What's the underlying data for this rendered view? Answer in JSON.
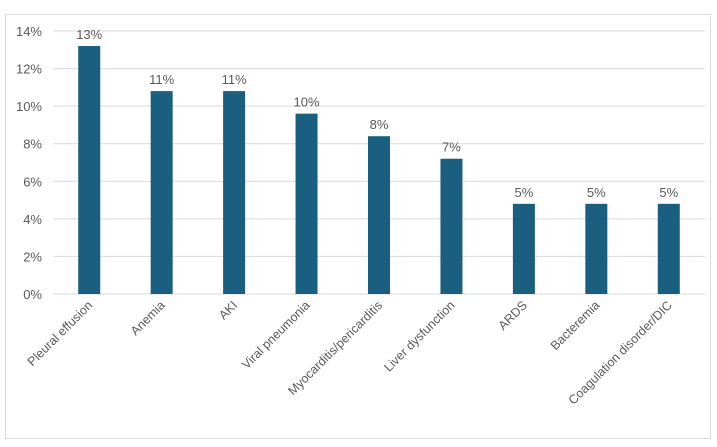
{
  "chart_data": {
    "type": "bar",
    "title": "",
    "xlabel": "",
    "ylabel": "",
    "categories": [
      "Pleural effusion",
      "Anemia",
      "AKI",
      "Viral pneumonia",
      "Myocarditis/pericarditis",
      "Liver dysfunction",
      "ARDS",
      "Bacteremia",
      "Coagulation disorder/DIC"
    ],
    "values": [
      13.2,
      10.8,
      10.8,
      9.6,
      8.4,
      7.2,
      4.8,
      4.8,
      4.8
    ],
    "data_labels": [
      "13%",
      "11%",
      "11%",
      "10%",
      "8%",
      "7%",
      "5%",
      "5%",
      "5%"
    ],
    "ylim": [
      0,
      14
    ],
    "yticks": [
      0,
      2,
      4,
      6,
      8,
      10,
      12,
      14
    ],
    "ytick_labels": [
      "0%",
      "2%",
      "4%",
      "6%",
      "8%",
      "10%",
      "12%",
      "14%"
    ],
    "grid": true,
    "legend": "none",
    "colors": {
      "bar": "#1a5e80",
      "grid": "#d9d9d9"
    }
  }
}
